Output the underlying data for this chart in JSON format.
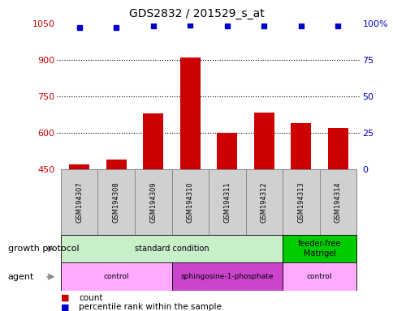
{
  "title": "GDS2832 / 201529_s_at",
  "samples": [
    "GSM194307",
    "GSM194308",
    "GSM194309",
    "GSM194310",
    "GSM194311",
    "GSM194312",
    "GSM194313",
    "GSM194314"
  ],
  "counts": [
    470,
    490,
    680,
    910,
    600,
    685,
    640,
    620
  ],
  "percentile_ranks": [
    97,
    97,
    98,
    99,
    98,
    98,
    98,
    98
  ],
  "ylim_left": [
    450,
    1050
  ],
  "ylim_right": [
    0,
    100
  ],
  "yticks_left": [
    450,
    600,
    750,
    900,
    1050
  ],
  "yticks_right": [
    0,
    25,
    50,
    75,
    100
  ],
  "ytick_right_labels": [
    "0",
    "25",
    "50",
    "75",
    "100%"
  ],
  "gridlines": [
    600,
    750,
    900
  ],
  "growth_protocol_groups": [
    {
      "label": "standard condition",
      "start": 0,
      "end": 6,
      "color": "#c8f0c8"
    },
    {
      "label": "feeder-free\nMatrigel",
      "start": 6,
      "end": 8,
      "color": "#00cc00"
    }
  ],
  "agent_groups": [
    {
      "label": "control",
      "start": 0,
      "end": 3,
      "color": "#ffaaff"
    },
    {
      "label": "sphingosine-1-phosphate",
      "start": 3,
      "end": 6,
      "color": "#cc44cc"
    },
    {
      "label": "control",
      "start": 6,
      "end": 8,
      "color": "#ffaaff"
    }
  ],
  "bar_color": "#cc0000",
  "dot_color": "#0000cc",
  "sample_box_color": "#d0d0d0",
  "sample_box_edge": "#888888",
  "label_color_left": "#cc0000",
  "label_color_right": "#0000cc",
  "arrow_color": "#888888",
  "fig_width": 4.85,
  "fig_height": 3.84,
  "dpi": 100
}
